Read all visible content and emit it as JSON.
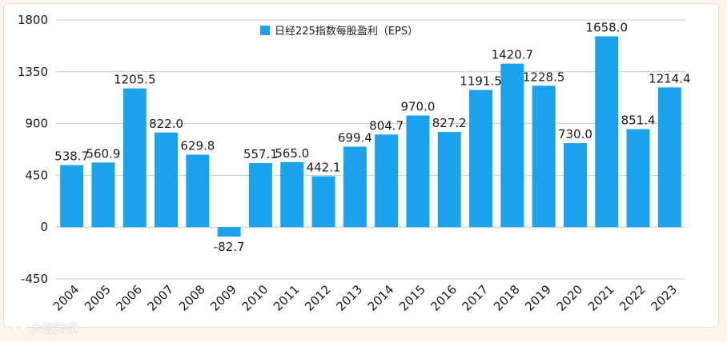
{
  "chart_data": {
    "type": "bar",
    "legend": "日经225指数每股盈利（EPS）",
    "legend_position": "top",
    "categories": [
      "2004",
      "2005",
      "2006",
      "2007",
      "2008",
      "2009",
      "2010",
      "2011",
      "2012",
      "2013",
      "2014",
      "2015",
      "2016",
      "2017",
      "2018",
      "2019",
      "2020",
      "2021",
      "2022",
      "2023"
    ],
    "values": [
      538.7,
      560.9,
      1205.5,
      822.0,
      629.8,
      -82.7,
      557.1,
      565.0,
      442.1,
      699.4,
      804.7,
      970.0,
      827.2,
      1191.5,
      1420.7,
      1228.5,
      730.0,
      1658.0,
      851.4,
      1214.4
    ],
    "labels": [
      "538.7",
      "560.9",
      "1205.5",
      "822.0",
      "629.8",
      "-82.7",
      "557.1",
      "565.0",
      "442.1",
      "699.4",
      "804.7",
      "970.0",
      "827.2",
      "1191.5",
      "1420.7",
      "1228.5",
      "730.0",
      "1658.0",
      "851.4",
      "1214.4"
    ],
    "yticks": [
      -450,
      0,
      450,
      900,
      1350,
      1800
    ],
    "ylim": [
      -450,
      1800
    ],
    "grid": true,
    "bar_color": "#1aa3ec"
  },
  "watermark": {
    "text": "大数跨境",
    "icon": "watermark-logo-icon"
  }
}
